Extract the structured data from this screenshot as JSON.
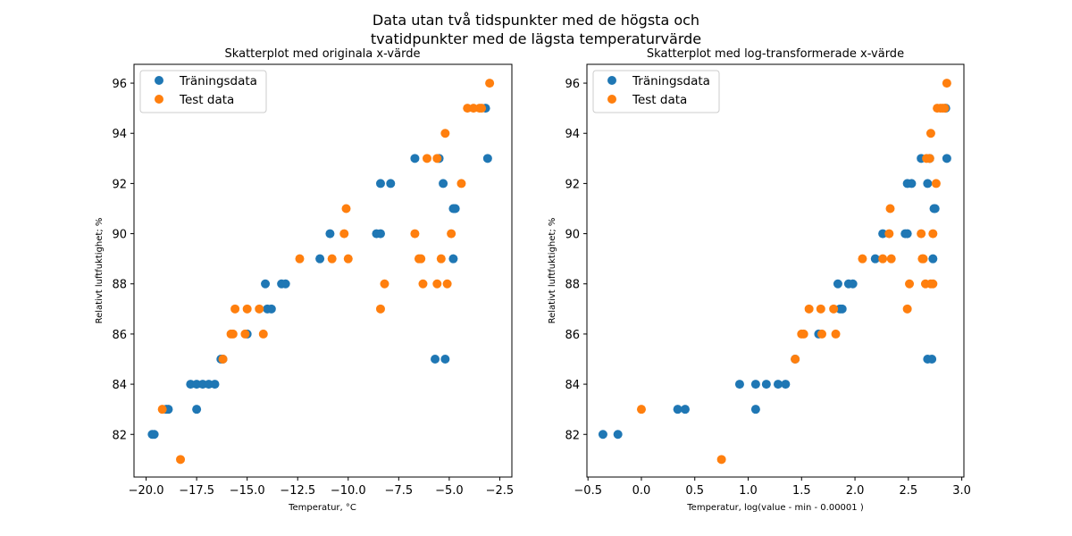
{
  "figure": {
    "suptitle_line1": "Data utan två tidspunkter med de högsta och",
    "suptitle_line2": "tvatidpunkter med de lägsta temperaturvärde"
  },
  "colors": {
    "train": "#1f77b4",
    "test": "#ff7f0e"
  },
  "chart_data": [
    {
      "type": "scatter",
      "title": "Skatterplot med originala x-värde",
      "xlabel": "Temperatur, °C",
      "ylabel": "Relativt luftfuktighet; %",
      "xlim": [
        -20.6,
        -1.9
      ],
      "ylim": [
        80.3,
        96.75
      ],
      "xticks": [
        -20.0,
        -17.5,
        -15.0,
        -12.5,
        -10.0,
        -7.5,
        -5.0,
        -2.5
      ],
      "xtick_labels": [
        "−20.0",
        "−17.5",
        "−15.0",
        "−12.5",
        "−10.0",
        "−7.5",
        "−5.0",
        "−2.5"
      ],
      "yticks": [
        82,
        84,
        86,
        88,
        90,
        92,
        94,
        96
      ],
      "legend": {
        "position": "upper-left",
        "entries": [
          "Träningsdata",
          "Test data"
        ]
      },
      "series": [
        {
          "name": "Träningsdata",
          "x": [
            -19.7,
            -19.6,
            -19.0,
            -18.9,
            -17.8,
            -17.5,
            -17.2,
            -16.9,
            -16.6,
            -16.3,
            -17.5,
            -16.2,
            -15.0,
            -14.1,
            -14.0,
            -13.8,
            -13.3,
            -13.1,
            -11.4,
            -10.9,
            -8.6,
            -8.4,
            -8.4,
            -7.9,
            -6.7,
            -5.5,
            -5.3,
            -4.8,
            -4.7,
            -4.8,
            -5.7,
            -5.2,
            -3.2,
            -3.1
          ],
          "y": [
            82,
            82,
            83,
            83,
            84,
            84,
            84,
            84,
            84,
            85,
            83,
            85,
            86,
            88,
            87,
            87,
            88,
            88,
            89,
            90,
            90,
            90,
            92,
            92,
            93,
            93,
            92,
            91,
            91,
            89,
            85,
            85,
            95,
            93
          ]
        },
        {
          "name": "Test data",
          "x": [
            -18.3,
            -19.2,
            -16.2,
            -15.8,
            -15.7,
            -15.6,
            -15.1,
            -15.0,
            -14.4,
            -14.2,
            -12.4,
            -10.8,
            -10.2,
            -10.1,
            -10.0,
            -8.4,
            -8.2,
            -6.7,
            -6.5,
            -6.4,
            -6.3,
            -6.1,
            -5.6,
            -5.6,
            -5.4,
            -5.2,
            -5.1,
            -4.9,
            -4.4,
            -4.1,
            -3.8,
            -3.5,
            -3.4,
            -3.0
          ],
          "y": [
            81,
            83,
            85,
            86,
            86,
            87,
            86,
            87,
            87,
            86,
            89,
            89,
            90,
            91,
            89,
            87,
            88,
            90,
            89,
            89,
            88,
            93,
            93,
            88,
            89,
            94,
            88,
            90,
            92,
            95,
            95,
            95,
            95,
            96
          ]
        }
      ]
    },
    {
      "type": "scatter",
      "title": "Skatterplot med log-transformerade x-värde",
      "xlabel": "Temperatur, log(value - min - 0.00001 )",
      "ylabel": "Relativt luftfuktighet; %",
      "xlim": [
        -0.51,
        3.02
      ],
      "ylim": [
        80.3,
        96.75
      ],
      "xticks": [
        -0.5,
        0.0,
        0.5,
        1.0,
        1.5,
        2.0,
        2.5,
        3.0
      ],
      "xtick_labels": [
        "−0.5",
        "0.0",
        "0.5",
        "1.0",
        "1.5",
        "2.0",
        "2.5",
        "3.0"
      ],
      "yticks": [
        82,
        84,
        86,
        88,
        90,
        92,
        94,
        96
      ],
      "legend": {
        "position": "upper-left",
        "entries": [
          "Träningsdata",
          "Test data"
        ]
      },
      "series": [
        {
          "name": "Träningsdata",
          "x": [
            -0.36,
            -0.22,
            0.34,
            0.41,
            0.92,
            1.07,
            1.17,
            1.28,
            1.35,
            1.07,
            1.44,
            1.66,
            1.84,
            1.86,
            1.88,
            1.94,
            1.98,
            2.19,
            2.26,
            2.47,
            2.49,
            2.49,
            2.53,
            2.62,
            2.7,
            2.68,
            2.74,
            2.75,
            2.73,
            2.68,
            2.72,
            2.85,
            2.86
          ],
          "y": [
            82,
            82,
            83,
            83,
            84,
            84,
            84,
            84,
            84,
            83,
            85,
            86,
            88,
            87,
            87,
            88,
            88,
            89,
            90,
            90,
            90,
            92,
            92,
            93,
            93,
            92,
            91,
            91,
            89,
            85,
            85,
            95,
            93
          ]
        },
        {
          "name": "Test data",
          "x": [
            0.0,
            0.75,
            1.44,
            1.5,
            1.52,
            1.57,
            1.68,
            1.69,
            1.8,
            1.82,
            2.07,
            2.26,
            2.32,
            2.33,
            2.34,
            2.49,
            2.51,
            2.62,
            2.63,
            2.64,
            2.66,
            2.67,
            2.7,
            2.71,
            2.71,
            2.73,
            2.73,
            2.76,
            2.77,
            2.8,
            2.82,
            2.84,
            2.86
          ],
          "y": [
            83,
            81,
            85,
            86,
            86,
            87,
            87,
            86,
            87,
            86,
            89,
            89,
            90,
            91,
            89,
            87,
            88,
            90,
            89,
            89,
            88,
            93,
            93,
            88,
            94,
            90,
            88,
            92,
            95,
            95,
            95,
            95,
            96
          ]
        }
      ]
    }
  ]
}
